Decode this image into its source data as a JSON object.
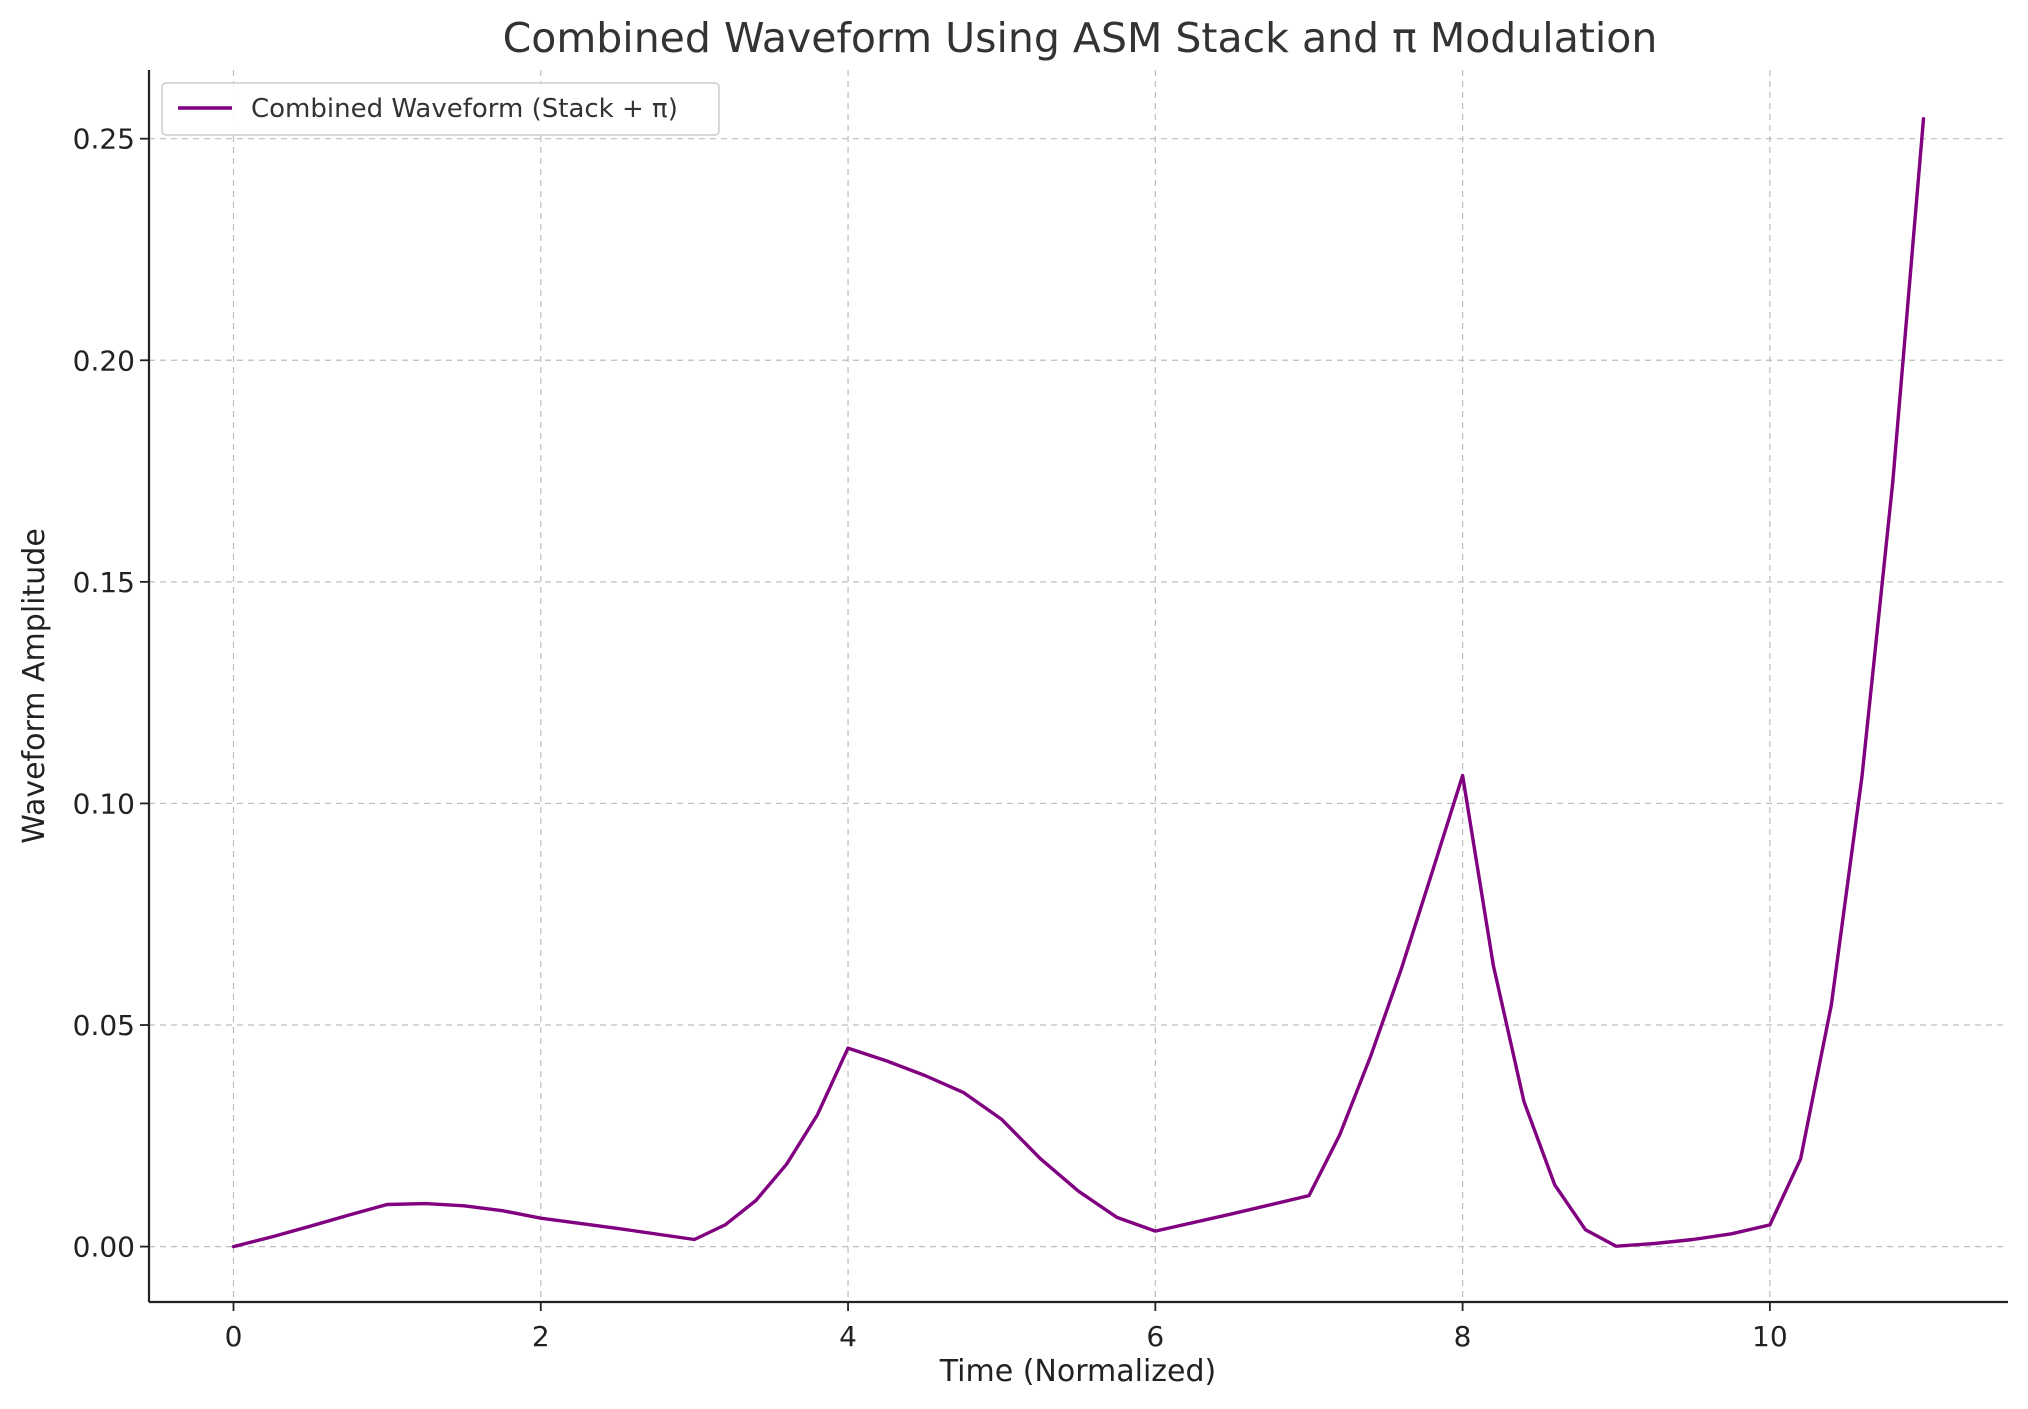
{
  "chart_data": {
    "type": "line",
    "title": "Combined Waveform Using ASM Stack and π Modulation",
    "xlabel": "Time (Normalized)",
    "ylabel": "Waveform Amplitude",
    "xlim": [
      -0.55,
      11.55
    ],
    "ylim": [
      -0.0125,
      0.2655
    ],
    "xticks": [
      0,
      2,
      4,
      6,
      8,
      10
    ],
    "xtick_labels": [
      "0",
      "2",
      "4",
      "6",
      "8",
      "10"
    ],
    "yticks": [
      0,
      0.05,
      0.1,
      0.15,
      0.2,
      0.25
    ],
    "ytick_labels": [
      "0.00",
      "0.05",
      "0.10",
      "0.15",
      "0.20",
      "0.25"
    ],
    "grid": true,
    "legend_position": "top-left",
    "series": [
      {
        "name": "Combined Waveform (Stack + π)",
        "color": "#800080",
        "x": [
          0,
          0.25,
          0.5,
          0.75,
          1.0,
          1.25,
          1.5,
          1.75,
          2.0,
          2.5,
          3.0,
          3.2,
          3.4,
          3.6,
          3.8,
          4.0,
          4.25,
          4.5,
          4.75,
          5.0,
          5.25,
          5.5,
          5.75,
          6.0,
          6.5,
          7.0,
          7.2,
          7.4,
          7.6,
          7.8,
          8.0,
          8.2,
          8.4,
          8.6,
          8.8,
          9.0,
          9.25,
          9.5,
          9.75,
          10.0,
          10.2,
          10.4,
          10.6,
          10.8,
          11.0
        ],
        "y": [
          0.0,
          0.0022,
          0.0046,
          0.0071,
          0.0095,
          0.0097,
          0.0092,
          0.0081,
          0.0064,
          0.0041,
          0.0016,
          0.0049,
          0.0104,
          0.0186,
          0.0297,
          0.0448,
          0.0419,
          0.0386,
          0.0348,
          0.0287,
          0.0199,
          0.0125,
          0.0066,
          0.0035,
          0.0074,
          0.0115,
          0.0252,
          0.0428,
          0.0625,
          0.0843,
          0.1063,
          0.0635,
          0.0327,
          0.0139,
          0.0038,
          0.0001,
          0.0007,
          0.0016,
          0.0029,
          0.0049,
          0.0198,
          0.0545,
          0.1061,
          0.1726,
          0.2545
        ]
      }
    ]
  }
}
